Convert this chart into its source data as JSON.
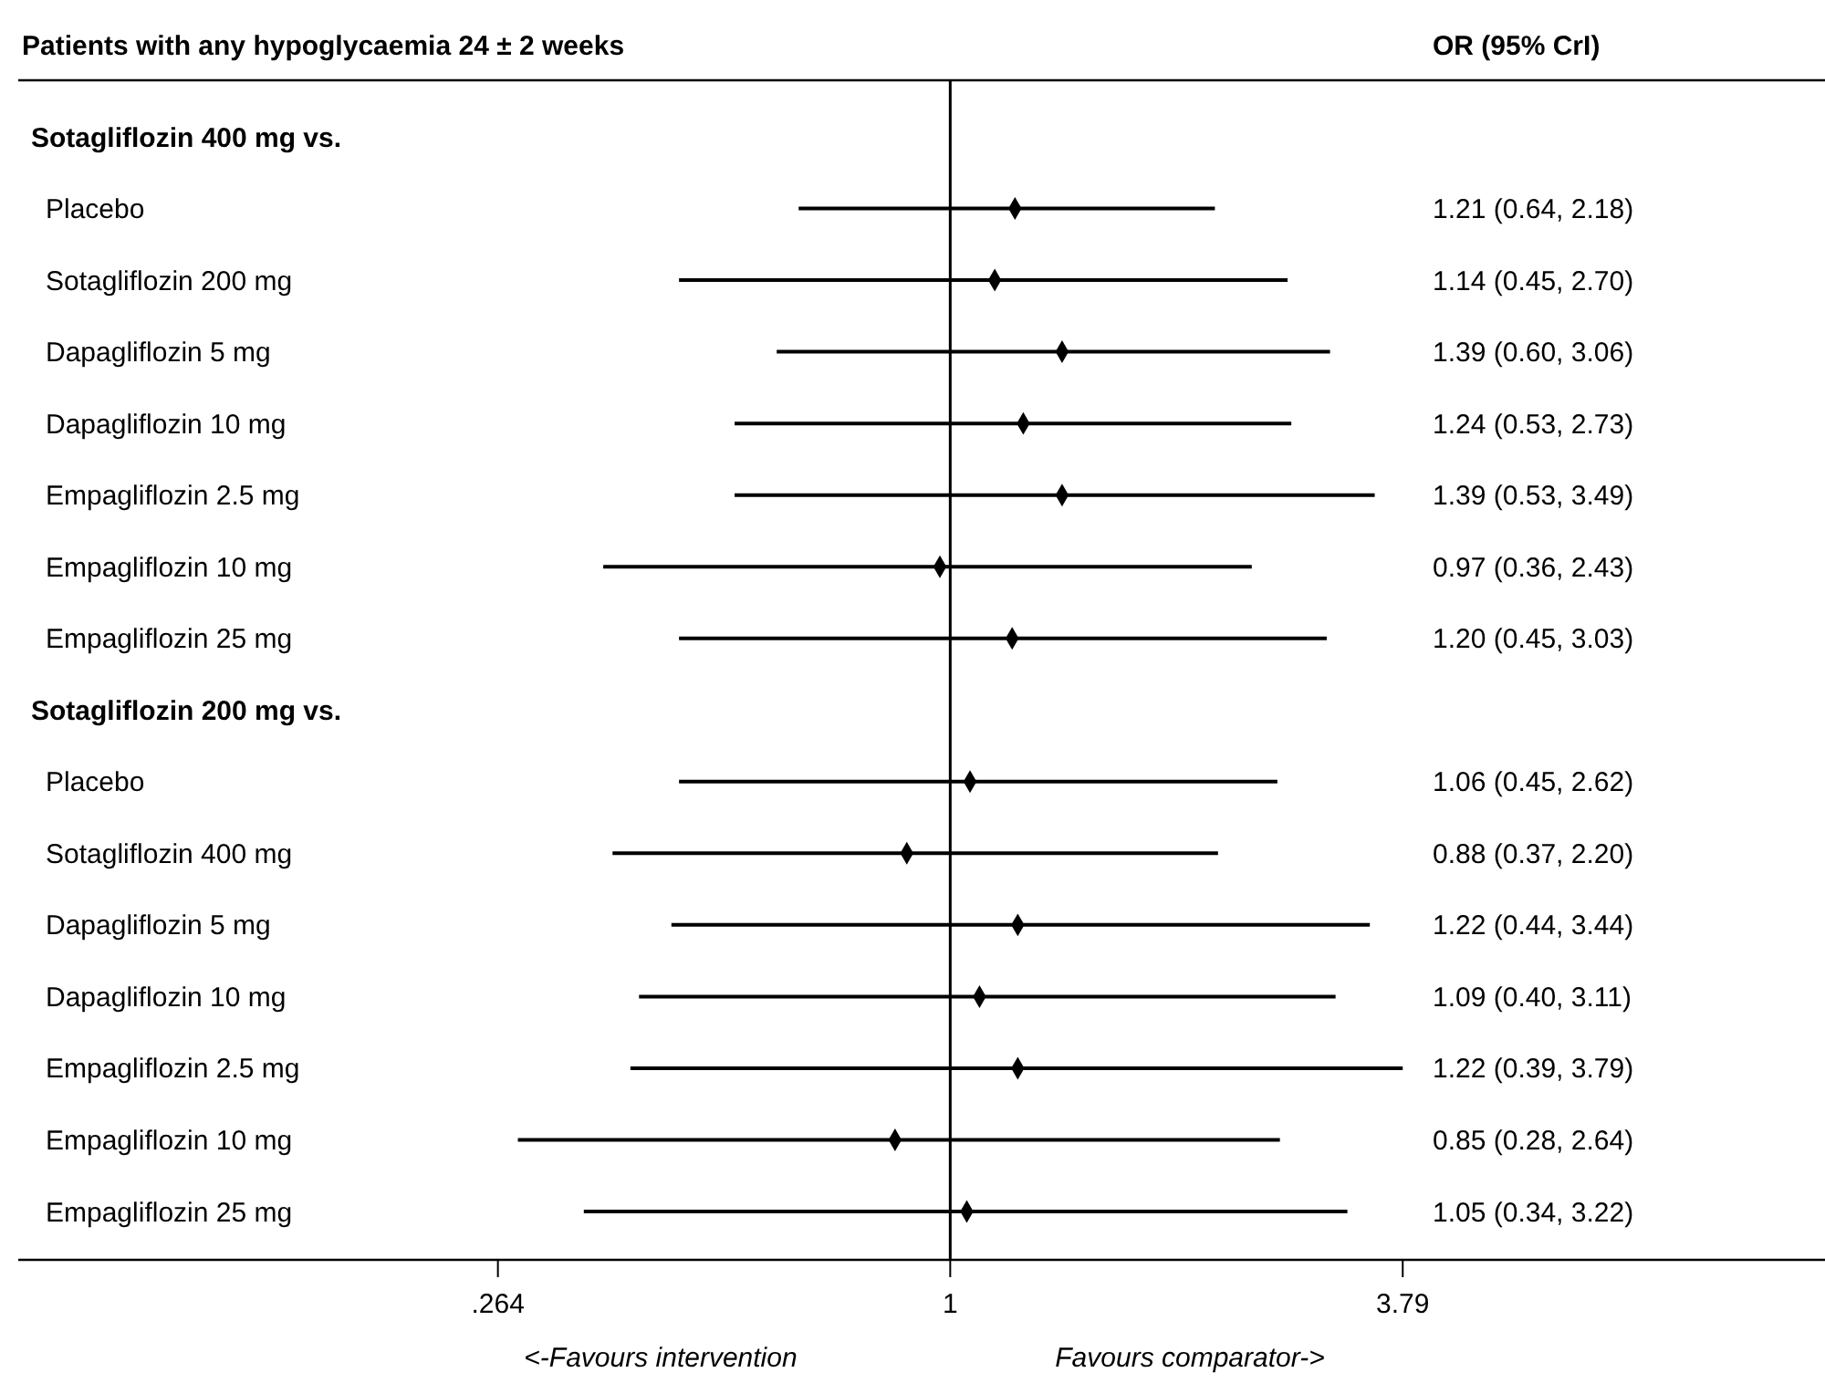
{
  "chart_data": {
    "type": "scatter",
    "orientation": "horizontal",
    "title": "Patients with any hypoglycaemia 24 ± 2 weeks",
    "categories": [
      "Sotagliflozin 400 mg vs.",
      "Placebo",
      "Sotagliflozin 200 mg",
      "Dapagliflozin 5 mg",
      "Dapagliflozin 10 mg",
      "Empagliflozin 2.5 mg",
      "Empagliflozin 10 mg",
      "Empagliflozin 25 mg",
      "Sotagliflozin 200 mg vs.",
      "Placebo",
      "Sotagliflozin 400 mg",
      "Dapagliflozin 5 mg",
      "Dapagliflozin 10 mg",
      "Empagliflozin 2.5 mg",
      "Empagliflozin 10 mg",
      "Empagliflozin 25 mg"
    ],
    "values": [
      null,
      1.21,
      1.14,
      1.39,
      1.24,
      1.39,
      0.97,
      1.2,
      null,
      1.06,
      0.88,
      1.22,
      1.09,
      1.22,
      0.85,
      1.05
    ],
    "errors": [
      null,
      [
        0.64,
        2.18
      ],
      [
        0.45,
        2.7
      ],
      [
        0.6,
        3.06
      ],
      [
        0.53,
        2.73
      ],
      [
        0.53,
        3.49
      ],
      [
        0.36,
        2.43
      ],
      [
        0.45,
        3.03
      ],
      null,
      [
        0.45,
        2.62
      ],
      [
        0.37,
        2.2
      ],
      [
        0.44,
        3.44
      ],
      [
        0.4,
        3.11
      ],
      [
        0.39,
        3.79
      ],
      [
        0.28,
        2.64
      ],
      [
        0.34,
        3.22
      ]
    ],
    "color": "#000000",
    "marker": "diamond",
    "log": "x",
    "xlim": [
      0.065,
      13
    ],
    "xticks": [
      {
        "value": 0.264,
        "label": ".264"
      },
      1,
      3.79
    ],
    "ref_lines": [
      {
        "axis": "x",
        "value": 1,
        "color": "#000000"
      }
    ],
    "annotations": [
      "OR (95% CrI)",
      "<-Favours intervention",
      "Favours comparator->",
      "1.21 (0.64, 2.18)",
      "1.14 (0.45, 2.70)",
      "1.39 (0.60, 3.06)",
      "1.24 (0.53, 2.73)",
      "1.39 (0.53, 3.49)",
      "0.97 (0.36, 2.43)",
      "1.20 (0.45, 3.03)",
      "1.06 (0.45, 2.62)",
      "0.88 (0.37, 2.20)",
      "1.22 (0.44, 3.44)",
      "1.09 (0.40, 3.11)",
      "1.22 (0.39, 3.79)",
      "0.85 (0.28, 2.64)",
      "1.05 (0.34, 3.22)"
    ]
  }
}
